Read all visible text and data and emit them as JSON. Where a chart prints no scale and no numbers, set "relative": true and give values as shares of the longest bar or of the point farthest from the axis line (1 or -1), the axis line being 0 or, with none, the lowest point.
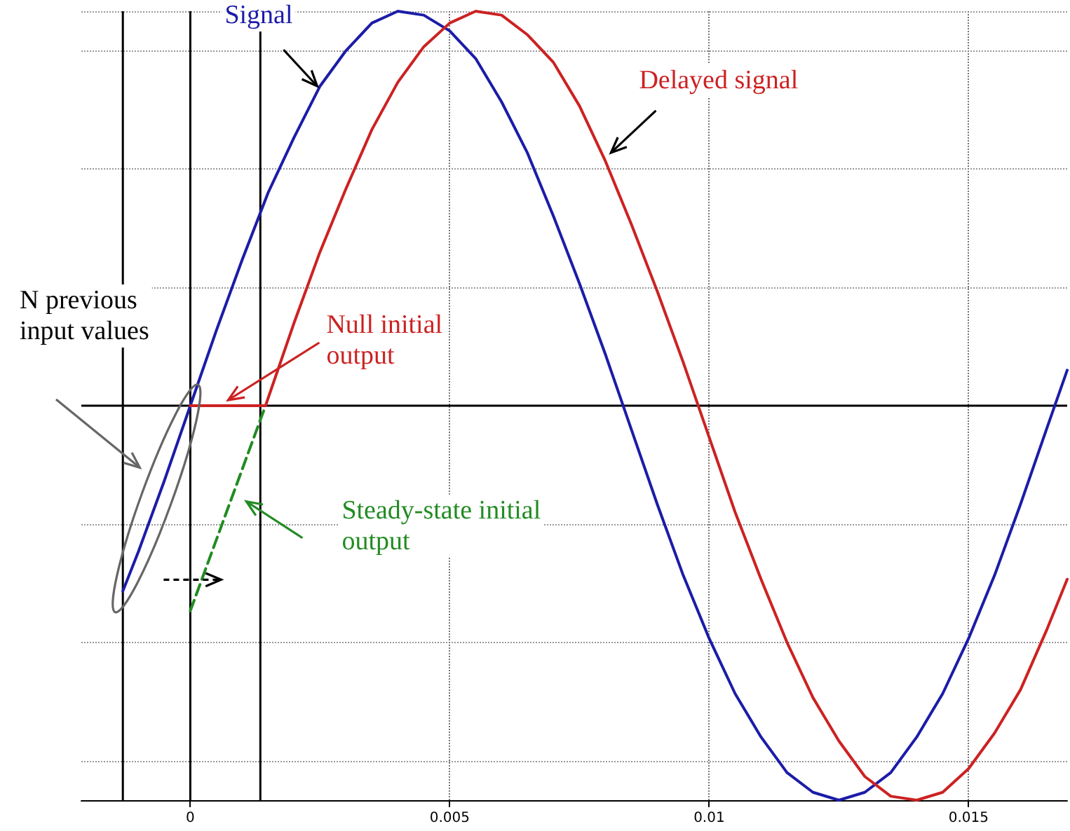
{
  "chart_data": {
    "type": "line",
    "relative": true,
    "xlim": [
      -0.0021,
      0.0169
    ],
    "xticks": [
      0,
      0.005,
      0.01,
      0.015
    ],
    "grid": true,
    "marker": "none",
    "ref_lines": [
      {
        "axis": "y",
        "value": 0,
        "color": "#000000"
      },
      {
        "axis": "x",
        "value": 0,
        "color": "#000000"
      },
      {
        "axis": "x",
        "value": -0.0013,
        "color": "#000000"
      },
      {
        "axis": "x",
        "value": 0.00135,
        "color": "#000000"
      }
    ],
    "annotations": [
      "N previous input values"
    ],
    "series": [
      {
        "name": "Signal",
        "color": "#1c1ca8",
        "x": [
          -0.0013,
          -0.001,
          -0.0005,
          0,
          0.0005,
          0.001,
          0.0015,
          0.002,
          0.0025,
          0.003,
          0.0035,
          0.004,
          0.0045,
          0.005,
          0.0055,
          0.006,
          0.0065,
          0.007,
          0.0075,
          0.008,
          0.0085,
          0.009,
          0.0095,
          0.01,
          0.0105,
          0.011,
          0.0115,
          0.012,
          0.0125,
          0.013,
          0.0135,
          0.014,
          0.0145,
          0.015,
          0.0155,
          0.016,
          0.0165,
          0.0169
        ],
        "values": [
          -0.47,
          -0.37,
          -0.19,
          0,
          0.19,
          0.37,
          0.54,
          0.68,
          0.81,
          0.9,
          0.97,
          1,
          0.99,
          0.95,
          0.88,
          0.77,
          0.64,
          0.48,
          0.31,
          0.13,
          -0.06,
          -0.25,
          -0.43,
          -0.59,
          -0.73,
          -0.84,
          -0.93,
          -0.98,
          -1,
          -0.98,
          -0.93,
          -0.84,
          -0.73,
          -0.59,
          -0.43,
          -0.25,
          -0.06,
          0.09
        ]
      },
      {
        "name": "Delayed signal",
        "color": "#cc2222",
        "x": [
          0.00145,
          0.002,
          0.0025,
          0.003,
          0.0035,
          0.004,
          0.0045,
          0.005,
          0.0055,
          0.006,
          0.0065,
          0.007,
          0.0075,
          0.008,
          0.0085,
          0.009,
          0.0095,
          0.01,
          0.0105,
          0.011,
          0.0115,
          0.012,
          0.0125,
          0.013,
          0.0135,
          0.014,
          0.0145,
          0.015,
          0.0155,
          0.016,
          0.0165,
          0.0169
        ],
        "values": [
          0,
          0.21,
          0.39,
          0.55,
          0.7,
          0.82,
          0.91,
          0.97,
          1,
          0.99,
          0.94,
          0.87,
          0.76,
          0.62,
          0.46,
          0.29,
          0.11,
          -0.08,
          -0.27,
          -0.44,
          -0.6,
          -0.74,
          -0.85,
          -0.94,
          -0.99,
          -1,
          -0.98,
          -0.92,
          -0.83,
          -0.72,
          -0.57,
          -0.44
        ]
      },
      {
        "name": "Null initial output",
        "color": "#cc2222",
        "x": [
          0,
          0.00145
        ],
        "values": [
          0,
          0
        ]
      },
      {
        "name": "Steady-state initial output",
        "color": "#228b22",
        "line_style": "dashed",
        "x": [
          0,
          0.00145
        ],
        "values": [
          -0.52,
          0
        ]
      }
    ]
  }
}
